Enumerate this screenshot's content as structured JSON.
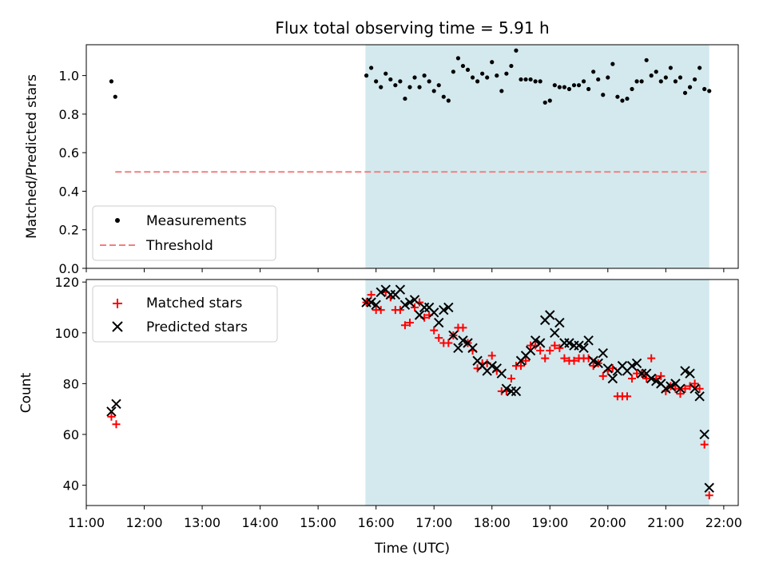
{
  "title": "Flux total observing time = 5.91 h",
  "colors": {
    "shade": "#d3e9ee",
    "measurement": "#000000",
    "threshold": "#f08080",
    "matched": "#ff0000",
    "predicted": "#000000"
  },
  "chart_data": [
    {
      "type": "scatter",
      "ylabel": "Matched/Predicted stars",
      "xlabel": "",
      "xlim": [
        "11:00",
        "22:15"
      ],
      "ylim": [
        0,
        1.16
      ],
      "yticks": [
        "0.0",
        "0.2",
        "0.4",
        "0.6",
        "0.8",
        "1.0"
      ],
      "shaded_span": [
        "15:49",
        "21:45"
      ],
      "legend_position": "lower-left",
      "threshold": {
        "name": "Threshold",
        "y": 0.5,
        "x": [
          "11:30",
          "21:45"
        ]
      },
      "series": [
        {
          "name": "Measurements",
          "points": [
            [
              "11:26",
              0.97
            ],
            [
              "11:30",
              0.89
            ],
            [
              "15:50",
              1.0
            ],
            [
              "15:55",
              1.04
            ],
            [
              "16:00",
              0.97
            ],
            [
              "16:05",
              0.94
            ],
            [
              "16:10",
              1.01
            ],
            [
              "16:15",
              0.98
            ],
            [
              "16:20",
              0.95
            ],
            [
              "16:25",
              0.97
            ],
            [
              "16:30",
              0.88
            ],
            [
              "16:35",
              0.94
            ],
            [
              "16:40",
              0.99
            ],
            [
              "16:45",
              0.94
            ],
            [
              "16:50",
              1.0
            ],
            [
              "16:55",
              0.97
            ],
            [
              "17:00",
              0.92
            ],
            [
              "17:05",
              0.95
            ],
            [
              "17:10",
              0.89
            ],
            [
              "17:15",
              0.87
            ],
            [
              "17:20",
              1.02
            ],
            [
              "17:25",
              1.09
            ],
            [
              "17:30",
              1.05
            ],
            [
              "17:35",
              1.03
            ],
            [
              "17:40",
              0.99
            ],
            [
              "17:45",
              0.97
            ],
            [
              "17:50",
              1.01
            ],
            [
              "17:55",
              0.99
            ],
            [
              "18:00",
              1.07
            ],
            [
              "18:05",
              1.0
            ],
            [
              "18:10",
              0.92
            ],
            [
              "18:15",
              1.01
            ],
            [
              "18:20",
              1.05
            ],
            [
              "18:25",
              1.13
            ],
            [
              "18:30",
              0.98
            ],
            [
              "18:35",
              0.98
            ],
            [
              "18:40",
              0.98
            ],
            [
              "18:45",
              0.97
            ],
            [
              "18:50",
              0.97
            ],
            [
              "18:55",
              0.86
            ],
            [
              "19:00",
              0.87
            ],
            [
              "19:05",
              0.95
            ],
            [
              "19:10",
              0.94
            ],
            [
              "19:15",
              0.94
            ],
            [
              "19:20",
              0.93
            ],
            [
              "19:25",
              0.95
            ],
            [
              "19:30",
              0.95
            ],
            [
              "19:35",
              0.97
            ],
            [
              "19:40",
              0.93
            ],
            [
              "19:45",
              1.02
            ],
            [
              "19:50",
              0.98
            ],
            [
              "19:55",
              0.9
            ],
            [
              "20:00",
              0.99
            ],
            [
              "20:05",
              1.06
            ],
            [
              "20:10",
              0.89
            ],
            [
              "20:15",
              0.87
            ],
            [
              "20:20",
              0.88
            ],
            [
              "20:25",
              0.93
            ],
            [
              "20:30",
              0.97
            ],
            [
              "20:35",
              0.97
            ],
            [
              "20:40",
              1.08
            ],
            [
              "20:45",
              1.0
            ],
            [
              "20:50",
              1.02
            ],
            [
              "20:55",
              0.97
            ],
            [
              "21:00",
              0.99
            ],
            [
              "21:05",
              1.04
            ],
            [
              "21:10",
              0.97
            ],
            [
              "21:15",
              0.99
            ],
            [
              "21:20",
              0.91
            ],
            [
              "21:25",
              0.94
            ],
            [
              "21:30",
              0.98
            ],
            [
              "21:35",
              1.04
            ],
            [
              "21:40",
              0.93
            ],
            [
              "21:45",
              0.92
            ]
          ]
        }
      ]
    },
    {
      "type": "scatter",
      "xlabel": "Time (UTC)",
      "ylabel": "Count",
      "xlim": [
        "11:00",
        "22:15"
      ],
      "ylim": [
        32,
        121
      ],
      "yticks": [
        "40",
        "60",
        "80",
        "100",
        "120"
      ],
      "xticks": [
        "11:00",
        "12:00",
        "13:00",
        "14:00",
        "15:00",
        "16:00",
        "17:00",
        "18:00",
        "19:00",
        "20:00",
        "21:00",
        "22:00"
      ],
      "shaded_span": [
        "15:49",
        "21:45"
      ],
      "legend_position": "upper-left",
      "series": [
        {
          "name": "Matched stars",
          "marker": "plus",
          "points": [
            [
              "11:26",
              67
            ],
            [
              "11:31",
              64
            ],
            [
              "15:50",
              112
            ],
            [
              "15:55",
              115
            ],
            [
              "16:00",
              109
            ],
            [
              "16:05",
              109
            ],
            [
              "16:10",
              116
            ],
            [
              "16:15",
              114
            ],
            [
              "16:20",
              109
            ],
            [
              "16:25",
              109
            ],
            [
              "16:30",
              103
            ],
            [
              "16:35",
              104
            ],
            [
              "16:40",
              110
            ],
            [
              "16:45",
              112
            ],
            [
              "16:50",
              106
            ],
            [
              "16:55",
              107
            ],
            [
              "17:00",
              101
            ],
            [
              "17:05",
              98
            ],
            [
              "17:10",
              96
            ],
            [
              "17:15",
              96
            ],
            [
              "17:20",
              99
            ],
            [
              "17:25",
              102
            ],
            [
              "17:30",
              102
            ],
            [
              "17:35",
              96
            ],
            [
              "17:40",
              93
            ],
            [
              "17:45",
              86
            ],
            [
              "17:50",
              88
            ],
            [
              "17:55",
              88
            ],
            [
              "18:00",
              91
            ],
            [
              "18:05",
              85
            ],
            [
              "18:10",
              77
            ],
            [
              "18:15",
              77
            ],
            [
              "18:20",
              82
            ],
            [
              "18:25",
              87
            ],
            [
              "18:30",
              87
            ],
            [
              "18:35",
              89
            ],
            [
              "18:40",
              95
            ],
            [
              "18:45",
              95
            ],
            [
              "18:50",
              93
            ],
            [
              "18:55",
              90
            ],
            [
              "19:00",
              93
            ],
            [
              "19:05",
              95
            ],
            [
              "19:10",
              94
            ],
            [
              "19:15",
              90
            ],
            [
              "19:20",
              89
            ],
            [
              "19:25",
              89
            ],
            [
              "19:30",
              90
            ],
            [
              "19:35",
              90
            ],
            [
              "19:40",
              90
            ],
            [
              "19:45",
              87
            ],
            [
              "19:50",
              88
            ],
            [
              "19:55",
              83
            ],
            [
              "20:00",
              85
            ],
            [
              "20:05",
              86
            ],
            [
              "20:10",
              75
            ],
            [
              "20:15",
              75
            ],
            [
              "20:20",
              75
            ],
            [
              "20:25",
              82
            ],
            [
              "20:30",
              84
            ],
            [
              "20:35",
              84
            ],
            [
              "20:40",
              82
            ],
            [
              "20:45",
              90
            ],
            [
              "20:50",
              82
            ],
            [
              "20:55",
              83
            ],
            [
              "21:00",
              77
            ],
            [
              "21:05",
              79
            ],
            [
              "21:10",
              78
            ],
            [
              "21:15",
              76
            ],
            [
              "21:20",
              78
            ],
            [
              "21:25",
              79
            ],
            [
              "21:30",
              80
            ],
            [
              "21:35",
              78
            ],
            [
              "21:40",
              56
            ],
            [
              "21:45",
              36
            ]
          ]
        },
        {
          "name": "Predicted stars",
          "marker": "cross",
          "points": [
            [
              "11:26",
              69
            ],
            [
              "11:31",
              72
            ],
            [
              "15:50",
              112
            ],
            [
              "15:55",
              112
            ],
            [
              "16:00",
              111
            ],
            [
              "16:05",
              116
            ],
            [
              "16:10",
              117
            ],
            [
              "16:15",
              115
            ],
            [
              "16:20",
              115
            ],
            [
              "16:25",
              117
            ],
            [
              "16:30",
              111
            ],
            [
              "16:35",
              112
            ],
            [
              "16:40",
              113
            ],
            [
              "16:45",
              107
            ],
            [
              "16:50",
              110
            ],
            [
              "16:55",
              110
            ],
            [
              "17:00",
              108
            ],
            [
              "17:05",
              104
            ],
            [
              "17:10",
              109
            ],
            [
              "17:15",
              110
            ],
            [
              "17:20",
              99
            ],
            [
              "17:25",
              94
            ],
            [
              "17:30",
              97
            ],
            [
              "17:35",
              96
            ],
            [
              "17:40",
              94
            ],
            [
              "17:45",
              89
            ],
            [
              "17:50",
              87
            ],
            [
              "17:55",
              85
            ],
            [
              "18:00",
              87
            ],
            [
              "18:05",
              86
            ],
            [
              "18:10",
              84
            ],
            [
              "18:15",
              78
            ],
            [
              "18:20",
              77
            ],
            [
              "18:25",
              77
            ],
            [
              "18:30",
              89
            ],
            [
              "18:35",
              91
            ],
            [
              "18:40",
              93
            ],
            [
              "18:45",
              97
            ],
            [
              "18:50",
              96
            ],
            [
              "18:55",
              105
            ],
            [
              "19:00",
              107
            ],
            [
              "19:05",
              100
            ],
            [
              "19:10",
              104
            ],
            [
              "19:15",
              96
            ],
            [
              "19:20",
              96
            ],
            [
              "19:25",
              95
            ],
            [
              "19:30",
              95
            ],
            [
              "19:35",
              94
            ],
            [
              "19:40",
              97
            ],
            [
              "19:45",
              89
            ],
            [
              "19:50",
              88
            ],
            [
              "19:55",
              92
            ],
            [
              "20:00",
              86
            ],
            [
              "20:05",
              82
            ],
            [
              "20:10",
              85
            ],
            [
              "20:15",
              87
            ],
            [
              "20:20",
              85
            ],
            [
              "20:25",
              87
            ],
            [
              "20:30",
              88
            ],
            [
              "20:35",
              84
            ],
            [
              "20:40",
              84
            ],
            [
              "20:45",
              82
            ],
            [
              "20:50",
              81
            ],
            [
              "20:55",
              80
            ],
            [
              "21:00",
              78
            ],
            [
              "21:05",
              79
            ],
            [
              "21:10",
              80
            ],
            [
              "21:15",
              78
            ],
            [
              "21:20",
              85
            ],
            [
              "21:25",
              84
            ],
            [
              "21:30",
              78
            ],
            [
              "21:35",
              75
            ],
            [
              "21:40",
              60
            ],
            [
              "21:45",
              39
            ]
          ]
        }
      ]
    }
  ]
}
